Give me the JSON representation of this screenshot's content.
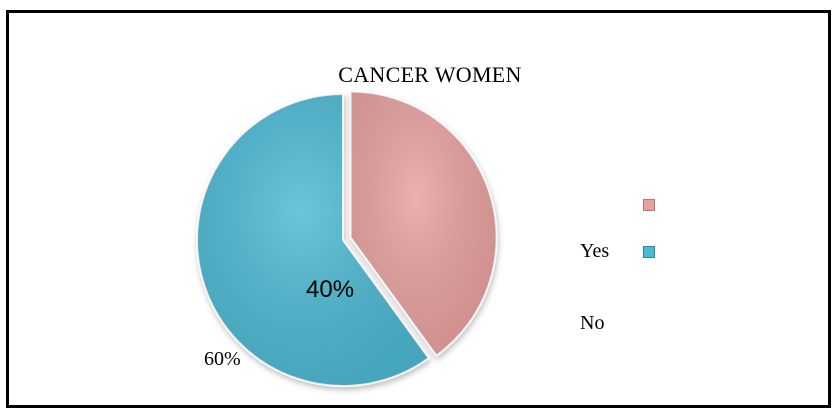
{
  "chart_data": {
    "type": "pie",
    "title": "CANCER WOMEN",
    "slices": [
      {
        "value": 40,
        "label": "40%",
        "color": "#e6a19f"
      },
      {
        "value": 60,
        "label": "60%",
        "color": "#4db8d2"
      }
    ],
    "legend": {
      "placement": "right",
      "labels": [
        "Yes",
        "No"
      ],
      "colors": [
        "#e6a19f",
        "#4db8d2"
      ]
    }
  }
}
